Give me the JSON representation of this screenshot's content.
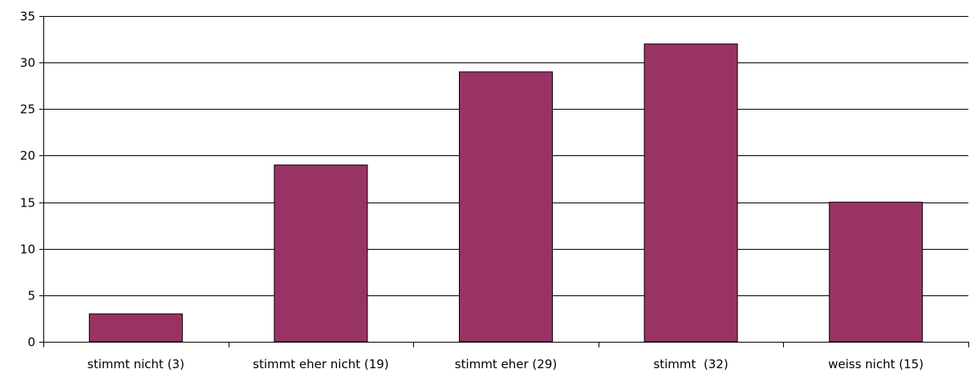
{
  "chart_data": {
    "type": "bar",
    "categories": [
      "stimmt nicht (3)",
      "stimmt eher nicht (19)",
      "stimmt eher (29)",
      "stimmt  (32)",
      "weiss nicht (15)"
    ],
    "values": [
      3,
      19,
      29,
      32,
      15
    ],
    "title": "",
    "xlabel": "",
    "ylabel": "",
    "ylim": [
      0,
      35
    ],
    "yticks": [
      0,
      5,
      10,
      15,
      20,
      25,
      30,
      35
    ],
    "grid": true,
    "legend": "none",
    "bar_color": "#993366",
    "bar_edge_color": "#000000"
  }
}
